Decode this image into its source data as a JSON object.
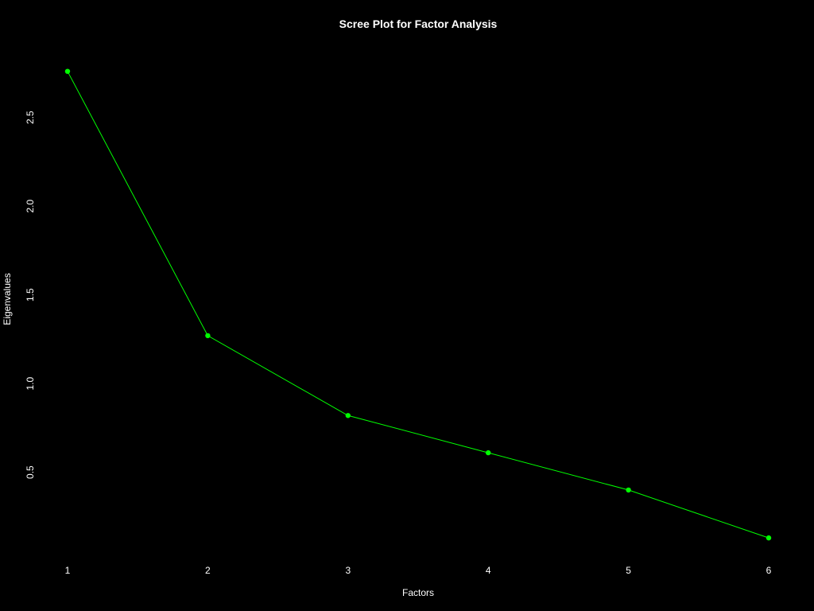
{
  "chart_data": {
    "type": "line",
    "title": "Scree Plot for Factor Analysis",
    "xlabel": "Factors",
    "ylabel": "Eigenvalues",
    "x": [
      1,
      2,
      3,
      4,
      5,
      6
    ],
    "y": [
      2.76,
      1.27,
      0.82,
      0.61,
      0.4,
      0.13
    ],
    "x_ticks": [
      "1",
      "2",
      "3",
      "4",
      "5",
      "6"
    ],
    "y_ticks": [
      "0.5",
      "1.0",
      "1.5",
      "2.0",
      "2.5"
    ],
    "xlim": [
      0.8,
      6.2
    ],
    "ylim": [
      0.07,
      2.82
    ],
    "grid": false,
    "colors": {
      "background": "#000000",
      "line": "#00ff00",
      "text": "#ffffff"
    }
  }
}
